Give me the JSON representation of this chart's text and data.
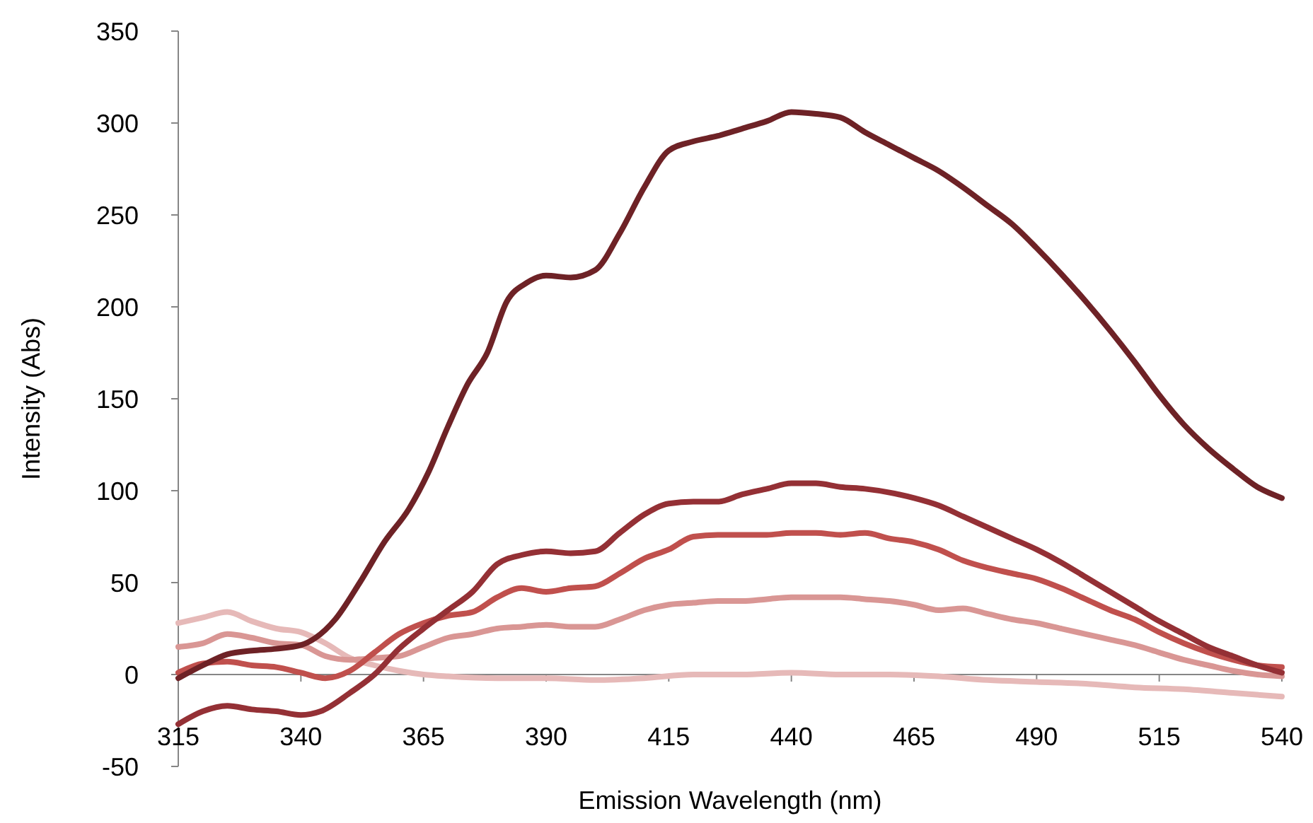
{
  "chart_data": {
    "type": "line",
    "xlabel": "Emission Wavelength (nm)",
    "ylabel": "Intensity (Abs)",
    "xlim": [
      315,
      540
    ],
    "xticks": [
      315,
      340,
      365,
      390,
      415,
      440,
      465,
      490,
      515,
      540
    ],
    "ylim": [
      -50,
      350
    ],
    "yticks": [
      -50,
      0,
      50,
      100,
      150,
      200,
      250,
      300,
      350
    ],
    "grid": false,
    "line_style": "solid",
    "series": [
      {
        "color": "#e6b9b8",
        "x": [
          315,
          320,
          325,
          330,
          335,
          340,
          345,
          350,
          355,
          360,
          365,
          370,
          380,
          390,
          400,
          410,
          420,
          430,
          440,
          450,
          460,
          470,
          480,
          490,
          500,
          510,
          520,
          530,
          540
        ],
        "values": [
          28,
          31,
          34,
          29,
          25,
          23,
          17,
          9,
          5,
          2,
          0,
          -1,
          -2,
          -2,
          -3,
          -2,
          0,
          0,
          1,
          0,
          0,
          -1,
          -3,
          -4,
          -5,
          -7,
          -8,
          -10,
          -12
        ]
      },
      {
        "color": "#d99694",
        "x": [
          315,
          320,
          325,
          330,
          335,
          340,
          345,
          350,
          355,
          360,
          365,
          370,
          375,
          380,
          385,
          390,
          395,
          400,
          405,
          410,
          415,
          420,
          425,
          430,
          435,
          440,
          445,
          450,
          455,
          460,
          465,
          470,
          475,
          480,
          485,
          490,
          495,
          500,
          505,
          510,
          515,
          520,
          525,
          530,
          535,
          540
        ],
        "values": [
          15,
          17,
          22,
          20,
          17,
          16,
          10,
          8,
          9,
          10,
          15,
          20,
          22,
          25,
          26,
          27,
          26,
          26,
          30,
          35,
          38,
          39,
          40,
          40,
          41,
          42,
          42,
          42,
          41,
          40,
          38,
          35,
          36,
          33,
          30,
          28,
          25,
          22,
          19,
          16,
          12,
          8,
          5,
          2,
          0,
          -1
        ]
      },
      {
        "color": "#c0504d",
        "x": [
          315,
          320,
          325,
          330,
          335,
          340,
          345,
          350,
          355,
          360,
          365,
          370,
          375,
          380,
          385,
          390,
          395,
          400,
          405,
          410,
          415,
          420,
          425,
          430,
          435,
          440,
          445,
          450,
          455,
          460,
          465,
          470,
          475,
          480,
          485,
          490,
          495,
          500,
          505,
          510,
          515,
          520,
          525,
          530,
          535,
          540
        ],
        "values": [
          1,
          6,
          7,
          5,
          4,
          1,
          -2,
          2,
          12,
          22,
          28,
          32,
          34,
          42,
          47,
          45,
          47,
          48,
          55,
          63,
          68,
          75,
          76,
          76,
          76,
          77,
          77,
          76,
          77,
          74,
          72,
          68,
          62,
          58,
          55,
          52,
          47,
          41,
          35,
          30,
          23,
          17,
          12,
          8,
          5,
          4
        ]
      },
      {
        "color": "#943035",
        "x": [
          315,
          320,
          325,
          330,
          335,
          340,
          344,
          350,
          355,
          360,
          365,
          370,
          375,
          380,
          385,
          390,
          395,
          400,
          405,
          410,
          415,
          420,
          425,
          430,
          435,
          440,
          445,
          450,
          455,
          460,
          465,
          470,
          475,
          480,
          485,
          490,
          495,
          500,
          505,
          510,
          515,
          520,
          525,
          530,
          535,
          540
        ],
        "values": [
          -27,
          -20,
          -17,
          -19,
          -20,
          -22,
          -20,
          -10,
          0,
          14,
          25,
          35,
          45,
          60,
          65,
          67,
          66,
          67,
          77,
          87,
          93,
          94,
          94,
          98,
          101,
          104,
          104,
          102,
          101,
          99,
          96,
          92,
          86,
          80,
          74,
          68,
          61,
          53,
          45,
          37,
          29,
          22,
          15,
          10,
          5,
          1
        ]
      },
      {
        "color": "#6e2226",
        "x": [
          315,
          320,
          325,
          330,
          335,
          340,
          343,
          347,
          352,
          357,
          362,
          366,
          370,
          374,
          378,
          382,
          386,
          390,
          395,
          400,
          405,
          410,
          415,
          420,
          425,
          430,
          435,
          440,
          445,
          450,
          455,
          460,
          465,
          470,
          475,
          480,
          485,
          490,
          495,
          500,
          505,
          510,
          515,
          520,
          525,
          530,
          535,
          540
        ],
        "values": [
          -2,
          5,
          11,
          13,
          14,
          16,
          20,
          30,
          50,
          72,
          90,
          110,
          135,
          158,
          175,
          203,
          213,
          217,
          216,
          220,
          240,
          265,
          285,
          290,
          293,
          297,
          301,
          306,
          305,
          303,
          295,
          288,
          281,
          274,
          265,
          255,
          245,
          232,
          218,
          203,
          187,
          170,
          152,
          136,
          123,
          112,
          102,
          96
        ]
      }
    ]
  }
}
